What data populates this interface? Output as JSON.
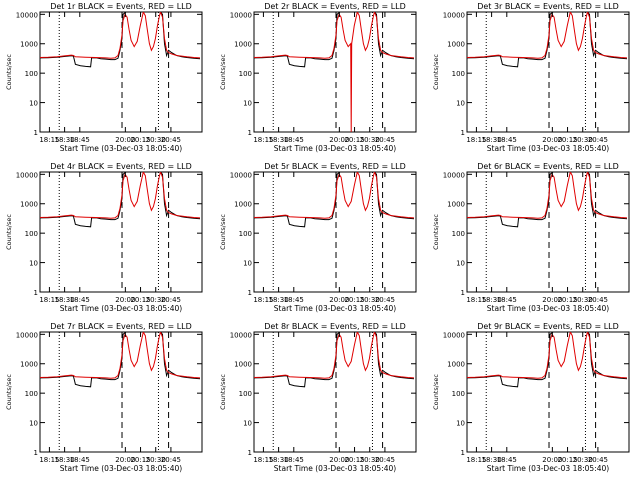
{
  "chart_data": {
    "type": "line",
    "panels": [
      {
        "title": "Det 1r BLACK = Events, RED = LLD",
        "variant": 0
      },
      {
        "title": "Det 2r BLACK = Events, RED = LLD",
        "variant": 1
      },
      {
        "title": "Det 3r BLACK = Events, RED = LLD",
        "variant": 2
      },
      {
        "title": "Det 4r BLACK = Events, RED = LLD",
        "variant": 0
      },
      {
        "title": "Det 5r BLACK = Events, RED = LLD",
        "variant": 0
      },
      {
        "title": "Det 6r BLACK = Events, RED = LLD",
        "variant": 0
      },
      {
        "title": "Det 7r BLACK = Events, RED = LLD",
        "variant": 0
      },
      {
        "title": "Det 8r BLACK = Events, RED = LLD",
        "variant": 0
      },
      {
        "title": "Det 9r BLACK = Events, RED = LLD",
        "variant": 2
      }
    ],
    "xlabel": "Start Time (03-Dec-03 18:05:40)",
    "ylabel": "Counts/sec",
    "x_ticks": [
      "18:15",
      "18:30",
      "18:45",
      "20:00",
      "20:15",
      "20:30",
      "20:45"
    ],
    "y_ticks": [
      "1",
      "10",
      "100",
      "1000",
      "10000"
    ],
    "yscale": "log",
    "ylim": [
      1,
      12000
    ],
    "xlim_minutes": [
      0,
      160
    ],
    "vlines_dotted_minutes": [
      19,
      117
    ],
    "vlines_dashed_minutes": [
      81,
      127
    ],
    "series": [
      {
        "legend_color": "BLACK",
        "meaning": "Events",
        "color": "#000000",
        "points": [
          [
            0,
            330
          ],
          [
            8,
            335
          ],
          [
            17,
            350
          ],
          [
            25,
            370
          ],
          [
            31,
            390
          ],
          [
            33,
            380
          ],
          [
            35,
            200
          ],
          [
            40,
            180
          ],
          [
            45,
            170
          ],
          [
            50,
            165
          ],
          [
            51,
            330
          ],
          [
            56,
            330
          ],
          [
            60,
            310
          ],
          [
            65,
            300
          ],
          [
            70,
            290
          ],
          [
            74,
            290
          ],
          [
            77,
            320
          ],
          [
            79,
            600
          ],
          [
            81,
            1500
          ],
          [
            82,
            10000
          ],
          [
            85,
            12000
          ],
          [
            87,
            12000
          ],
          [
            89,
            12000
          ],
          [
            113,
            12000
          ],
          [
            115,
            12000
          ],
          [
            118,
            12000
          ],
          [
            119,
            12000
          ],
          [
            121,
            10000
          ],
          [
            123,
            1000
          ],
          [
            125,
            400
          ],
          [
            127,
            600
          ],
          [
            130,
            500
          ],
          [
            135,
            400
          ],
          [
            140,
            360
          ],
          [
            145,
            340
          ],
          [
            152,
            320
          ],
          [
            158,
            310
          ]
        ]
      },
      {
        "legend_color": "RED",
        "meaning": "LLD",
        "color": "#e00000",
        "points": [
          [
            0,
            340
          ],
          [
            8,
            345
          ],
          [
            17,
            360
          ],
          [
            25,
            390
          ],
          [
            31,
            410
          ],
          [
            33,
            400
          ],
          [
            35,
            360
          ],
          [
            45,
            350
          ],
          [
            55,
            340
          ],
          [
            65,
            330
          ],
          [
            70,
            320
          ],
          [
            74,
            330
          ],
          [
            77,
            400
          ],
          [
            79,
            700
          ],
          [
            81,
            2000
          ],
          [
            82,
            6000
          ],
          [
            84,
            10000
          ],
          [
            86,
            8000
          ],
          [
            88,
            3000
          ],
          [
            90,
            1300
          ],
          [
            93,
            800
          ],
          [
            96,
            1200
          ],
          [
            99,
            4000
          ],
          [
            102,
            12000
          ],
          [
            104,
            9000
          ],
          [
            106,
            3000
          ],
          [
            108,
            1000
          ],
          [
            110,
            600
          ],
          [
            112,
            800
          ],
          [
            114,
            1500
          ],
          [
            116,
            4000
          ],
          [
            118,
            9000
          ],
          [
            119,
            12000
          ],
          [
            121,
            8000
          ],
          [
            123,
            1500
          ],
          [
            125,
            600
          ],
          [
            127,
            500
          ],
          [
            130,
            450
          ],
          [
            135,
            400
          ],
          [
            140,
            380
          ],
          [
            145,
            360
          ],
          [
            152,
            340
          ],
          [
            158,
            330
          ]
        ]
      }
    ],
    "variant_notes": {
      "1": {
        "red_spike_minutes": 96,
        "red_spike_low": 1
      },
      "2": {
        "red_dip_shallow": 250
      }
    },
    "grid": false,
    "legend": "in title"
  }
}
